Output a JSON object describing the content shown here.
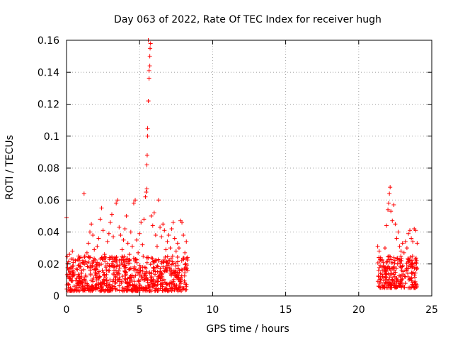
{
  "chart_data": {
    "type": "scatter",
    "title": "Day 063 of 2022, Rate Of TEC Index for receiver hugh",
    "xlabel": "GPS time / hours",
    "ylabel": "ROTI / TECUs",
    "xlim": [
      0,
      25
    ],
    "ylim": [
      0,
      0.16
    ],
    "xticks": [
      0,
      5,
      10,
      15,
      20,
      25
    ],
    "xtick_labels": [
      "0",
      "5",
      "10",
      "15",
      "20",
      "25"
    ],
    "yticks": [
      0,
      0.02,
      0.04,
      0.06,
      0.08,
      0.1,
      0.12,
      0.14,
      0.16
    ],
    "ytick_labels": [
      "0",
      "0.02",
      "0.04",
      "0.06",
      "0.08",
      "0.1",
      "0.12",
      "0.14",
      "0.16"
    ],
    "grid": true,
    "legend": "none",
    "marker": "+",
    "color": "#ff0000",
    "series": [
      {
        "name": "ROTI",
        "points": [
          [
            0.0,
            0.049
          ],
          [
            0.1,
            0.012
          ],
          [
            0.2,
            0.026
          ],
          [
            0.3,
            0.018
          ],
          [
            0.4,
            0.028
          ],
          [
            0.5,
            0.015
          ],
          [
            0.6,
            0.022
          ],
          [
            0.7,
            0.011
          ],
          [
            0.8,
            0.019
          ],
          [
            0.9,
            0.024
          ],
          [
            1.0,
            0.016
          ],
          [
            1.1,
            0.021
          ],
          [
            1.2,
            0.064
          ],
          [
            1.3,
            0.013
          ],
          [
            1.4,
            0.027
          ],
          [
            1.5,
            0.033
          ],
          [
            1.6,
            0.04
          ],
          [
            1.7,
            0.045
          ],
          [
            1.8,
            0.038
          ],
          [
            1.9,
            0.029
          ],
          [
            2.0,
            0.017
          ],
          [
            2.1,
            0.031
          ],
          [
            2.2,
            0.036
          ],
          [
            2.3,
            0.048
          ],
          [
            2.4,
            0.055
          ],
          [
            2.5,
            0.041
          ],
          [
            2.6,
            0.026
          ],
          [
            2.7,
            0.018
          ],
          [
            2.8,
            0.034
          ],
          [
            2.9,
            0.039
          ],
          [
            3.0,
            0.046
          ],
          [
            3.1,
            0.051
          ],
          [
            3.2,
            0.037
          ],
          [
            3.3,
            0.024
          ],
          [
            3.4,
            0.058
          ],
          [
            3.5,
            0.06
          ],
          [
            3.6,
            0.043
          ],
          [
            3.7,
            0.038
          ],
          [
            3.8,
            0.029
          ],
          [
            3.9,
            0.035
          ],
          [
            4.0,
            0.042
          ],
          [
            4.1,
            0.05
          ],
          [
            4.2,
            0.033
          ],
          [
            4.3,
            0.026
          ],
          [
            4.4,
            0.04
          ],
          [
            4.5,
            0.031
          ],
          [
            4.6,
            0.058
          ],
          [
            4.7,
            0.06
          ],
          [
            4.8,
            0.035
          ],
          [
            4.9,
            0.027
          ],
          [
            5.0,
            0.039
          ],
          [
            5.1,
            0.046
          ],
          [
            5.2,
            0.032
          ],
          [
            5.3,
            0.048
          ],
          [
            5.4,
            0.062
          ],
          [
            5.45,
            0.065
          ],
          [
            5.5,
            0.067
          ],
          [
            5.5,
            0.082
          ],
          [
            5.52,
            0.088
          ],
          [
            5.55,
            0.1
          ],
          [
            5.55,
            0.105
          ],
          [
            5.6,
            0.122
          ],
          [
            5.65,
            0.136
          ],
          [
            5.65,
            0.141
          ],
          [
            5.7,
            0.144
          ],
          [
            5.7,
            0.15
          ],
          [
            5.72,
            0.155
          ],
          [
            5.75,
            0.158
          ],
          [
            5.6,
            0.16
          ],
          [
            5.8,
            0.05
          ],
          [
            5.9,
            0.044
          ],
          [
            6.0,
            0.052
          ],
          [
            6.1,
            0.038
          ],
          [
            6.2,
            0.031
          ],
          [
            6.3,
            0.06
          ],
          [
            6.4,
            0.043
          ],
          [
            6.5,
            0.037
          ],
          [
            6.6,
            0.045
          ],
          [
            6.7,
            0.041
          ],
          [
            6.8,
            0.029
          ],
          [
            6.9,
            0.034
          ],
          [
            7.0,
            0.038
          ],
          [
            7.1,
            0.03
          ],
          [
            7.2,
            0.042
          ],
          [
            7.3,
            0.046
          ],
          [
            7.4,
            0.036
          ],
          [
            7.5,
            0.028
          ],
          [
            7.6,
            0.033
          ],
          [
            7.7,
            0.03
          ],
          [
            7.8,
            0.047
          ],
          [
            7.9,
            0.046
          ],
          [
            8.0,
            0.038
          ],
          [
            8.1,
            0.027
          ],
          [
            8.2,
            0.034
          ],
          [
            21.3,
            0.031
          ],
          [
            21.4,
            0.028
          ],
          [
            21.5,
            0.024
          ],
          [
            21.6,
            0.022
          ],
          [
            21.7,
            0.019
          ],
          [
            21.8,
            0.03
          ],
          [
            21.9,
            0.044
          ],
          [
            22.0,
            0.054
          ],
          [
            22.05,
            0.058
          ],
          [
            22.1,
            0.064
          ],
          [
            22.15,
            0.068
          ],
          [
            22.2,
            0.053
          ],
          [
            22.3,
            0.047
          ],
          [
            22.4,
            0.057
          ],
          [
            22.5,
            0.045
          ],
          [
            22.6,
            0.036
          ],
          [
            22.7,
            0.04
          ],
          [
            22.8,
            0.031
          ],
          [
            22.9,
            0.028
          ],
          [
            23.0,
            0.033
          ],
          [
            23.1,
            0.027
          ],
          [
            23.2,
            0.034
          ],
          [
            23.3,
            0.03
          ],
          [
            23.4,
            0.039
          ],
          [
            23.5,
            0.041
          ],
          [
            23.6,
            0.036
          ],
          [
            23.7,
            0.034
          ],
          [
            23.8,
            0.042
          ],
          [
            23.9,
            0.041
          ],
          [
            24.0,
            0.033
          ]
        ],
        "dense_bands": [
          {
            "x_range": [
              0.0,
              8.3
            ],
            "y_range": [
              0.003,
              0.025
            ]
          },
          {
            "x_range": [
              21.3,
              24.0
            ],
            "y_range": [
              0.005,
              0.025
            ]
          }
        ]
      }
    ]
  }
}
